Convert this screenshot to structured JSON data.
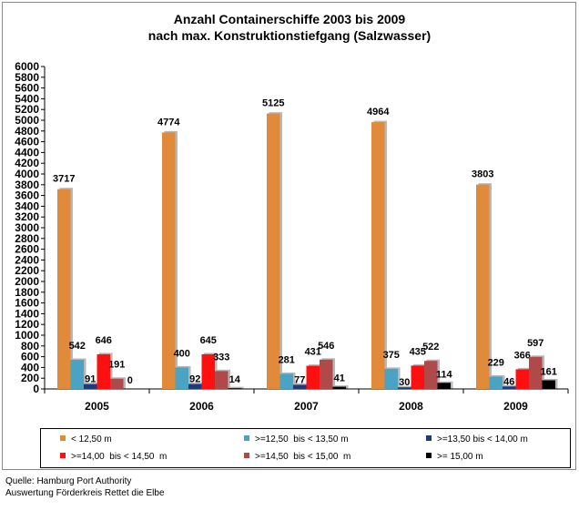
{
  "chart_data": {
    "type": "bar",
    "title": "Anzahl Containerschiffe 2003 bis 2009",
    "subtitle": "nach max. Konstruktionstiefgang (Salzwasser)",
    "categories": [
      "2005",
      "2006",
      "2007",
      "2008",
      "2009"
    ],
    "ylim": [
      0,
      6000
    ],
    "yticks": [
      "0",
      "200",
      "400",
      "600",
      "800",
      "1000",
      "1200",
      "1400",
      "1600",
      "1800",
      "2000",
      "2200",
      "2400",
      "2600",
      "2800",
      "3000",
      "3200",
      "3400",
      "3600",
      "3800",
      "4000",
      "4200",
      "4400",
      "4600",
      "4800",
      "5000",
      "5200",
      "5400",
      "5600",
      "5800",
      "6000"
    ],
    "grid": false,
    "legend_position": "bottom",
    "series": [
      {
        "name": "< 12,50 m",
        "color": "#E08A3A",
        "values": [
          3717,
          4774,
          5125,
          4964,
          3803
        ]
      },
      {
        "name": ">=12,50  bis < 13,50 m",
        "color": "#4BA3C3",
        "values": [
          542,
          400,
          281,
          375,
          229
        ]
      },
      {
        "name": ">=13,50 bis < 14,00 m",
        "color": "#1F3A7A",
        "values": [
          91,
          92,
          77,
          30,
          46
        ]
      },
      {
        "name": ">=14,00  bis < 14,50  m",
        "color": "#FF1010",
        "values": [
          646,
          645,
          431,
          435,
          366
        ]
      },
      {
        "name": ">=14,50  bis < 15,00  m",
        "color": "#B04A4A",
        "values": [
          191,
          333,
          546,
          522,
          597
        ]
      },
      {
        "name": ">= 15,00 m",
        "color": "#000000",
        "values": [
          0,
          14,
          41,
          114,
          161
        ]
      }
    ]
  },
  "source": {
    "line1": "Quelle: Hamburg Port Authority",
    "line2": "Auswertung Förderkreis Rettet die Elbe"
  }
}
